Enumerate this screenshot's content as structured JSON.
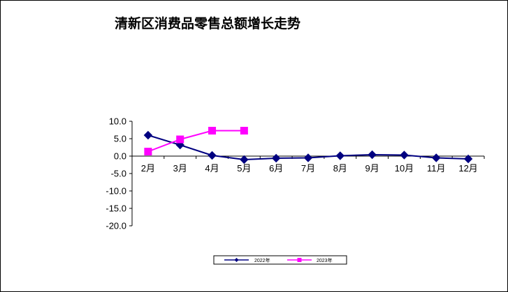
{
  "chart_data": {
    "type": "line",
    "title": "清新区消费品零售总额增长走势",
    "xlabel": "",
    "ylabel": "",
    "categories": [
      "2月",
      "3月",
      "4月",
      "5月",
      "6月",
      "7月",
      "8月",
      "9月",
      "10月",
      "11月",
      "12月"
    ],
    "y_ticks": [
      "10.0",
      "5.0",
      "0.0",
      "-5.0",
      "-10.0",
      "-15.0",
      "-20.0"
    ],
    "ylim": [
      -20,
      10
    ],
    "grid": false,
    "legend_position": "bottom",
    "series": [
      {
        "name": "2022年",
        "color": "#000080",
        "marker": "diamond",
        "values": [
          6.0,
          3.2,
          0.2,
          -1.0,
          -0.6,
          -0.5,
          0.1,
          0.4,
          0.3,
          -0.5,
          -0.8
        ]
      },
      {
        "name": "2023年",
        "color": "#ff00ff",
        "marker": "square",
        "values": [
          1.3,
          4.8,
          7.3,
          7.3,
          null,
          null,
          null,
          null,
          null,
          null,
          null
        ]
      }
    ]
  }
}
